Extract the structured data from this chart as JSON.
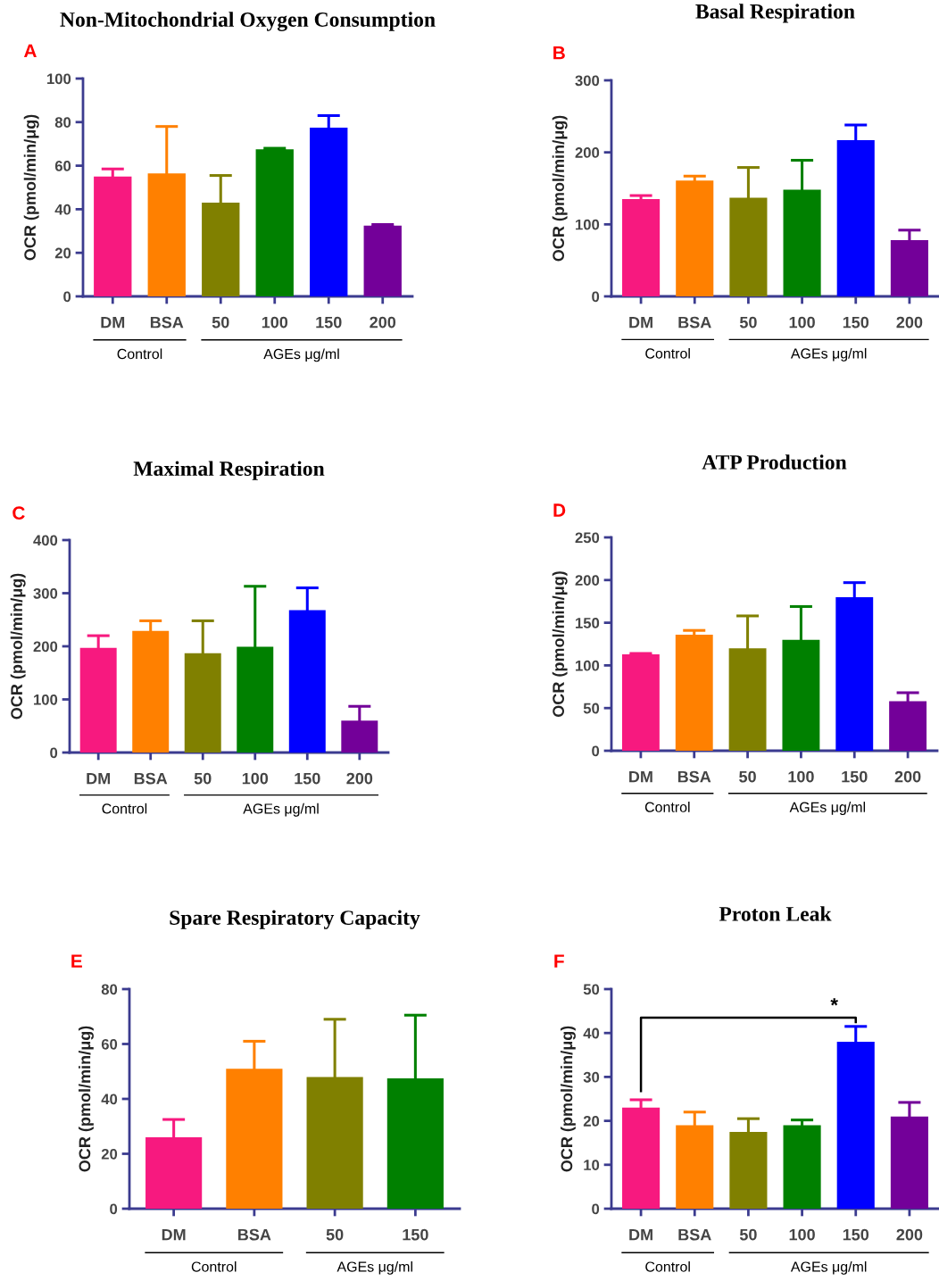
{
  "chart_data": [
    {
      "type": "bar",
      "title": "Non-Mitochondrial Oxygen Consumption",
      "ylabel": "OCR (pmol/min/μg)",
      "categories": [
        "DM",
        "BSA",
        "50",
        "100",
        "150",
        "200"
      ],
      "values": [
        55,
        56.5,
        43,
        67.5,
        77.5,
        32.5
      ],
      "errors": [
        3.5,
        21.5,
        12.5,
        0.5,
        5.5,
        0.5
      ],
      "colors": [
        "#f7197f",
        "#ff8000",
        "#808000",
        "#008000",
        "#0000ff",
        "#730099"
      ],
      "ylim": [
        0,
        100
      ],
      "yticks": [
        0,
        20,
        40,
        60,
        80,
        100
      ],
      "annotations": [
        "A",
        "Control",
        "AGEs μg/ml"
      ]
    },
    {
      "type": "bar",
      "title": "Basal Respiration",
      "ylabel": "OCR (pmol/min/μg)",
      "categories": [
        "DM",
        "BSA",
        "50",
        "100",
        "150",
        "200"
      ],
      "values": [
        135,
        161,
        137,
        148,
        217,
        78
      ],
      "errors": [
        5,
        6,
        42,
        41,
        21,
        14
      ],
      "colors": [
        "#f7197f",
        "#ff8000",
        "#808000",
        "#008000",
        "#0000ff",
        "#730099"
      ],
      "ylim": [
        0,
        300
      ],
      "yticks": [
        0,
        100,
        200,
        300
      ],
      "annotations": [
        "B",
        "Control",
        "AGEs μg/ml"
      ]
    },
    {
      "type": "bar",
      "title": "Maximal Respiration",
      "ylabel": "OCR (pmol/min/μg)",
      "categories": [
        "DM",
        "BSA",
        "50",
        "100",
        "150",
        "200"
      ],
      "values": [
        197,
        229,
        187,
        199,
        268,
        60
      ],
      "errors": [
        23,
        19,
        61,
        114,
        42,
        27
      ],
      "colors": [
        "#f7197f",
        "#ff8000",
        "#808000",
        "#008000",
        "#0000ff",
        "#730099"
      ],
      "ylim": [
        0,
        400
      ],
      "yticks": [
        0,
        100,
        200,
        300,
        400
      ],
      "annotations": [
        "C",
        "Control",
        "AGEs μg/ml"
      ]
    },
    {
      "type": "bar",
      "title": "ATP Production",
      "ylabel": "OCR (pmol/min/μg)",
      "categories": [
        "DM",
        "BSA",
        "50",
        "100",
        "150",
        "200"
      ],
      "values": [
        113,
        136,
        120,
        130,
        180,
        58
      ],
      "errors": [
        1,
        5,
        38,
        39,
        17,
        10
      ],
      "colors": [
        "#f7197f",
        "#ff8000",
        "#808000",
        "#008000",
        "#0000ff",
        "#730099"
      ],
      "ylim": [
        0,
        250
      ],
      "yticks": [
        0,
        50,
        100,
        150,
        200,
        250
      ],
      "annotations": [
        "D",
        "Control",
        "AGEs μg/ml"
      ]
    },
    {
      "type": "bar",
      "title": "Spare Respiratory Capacity",
      "ylabel": "OCR (pmol/min/μg)",
      "categories": [
        "DM",
        "BSA",
        "50",
        "150"
      ],
      "values": [
        26,
        51,
        48,
        47.5
      ],
      "errors": [
        6.5,
        10,
        21,
        23
      ],
      "colors": [
        "#f7197f",
        "#ff8000",
        "#808000",
        "#008000"
      ],
      "ylim": [
        0,
        80
      ],
      "yticks": [
        0,
        20,
        40,
        60,
        80
      ],
      "annotations": [
        "E",
        "Control",
        "AGEs μg/ml"
      ]
    },
    {
      "type": "bar",
      "title": "Proton Leak",
      "ylabel": "OCR (pmol/min/μg)",
      "categories": [
        "DM",
        "BSA",
        "50",
        "100",
        "150",
        "200"
      ],
      "values": [
        23,
        19,
        17.5,
        19,
        38,
        21
      ],
      "errors": [
        1.8,
        3,
        3,
        1.2,
        3.5,
        3.2
      ],
      "colors": [
        "#f7197f",
        "#ff8000",
        "#808000",
        "#008000",
        "#0000ff",
        "#730099"
      ],
      "ylim": [
        0,
        50
      ],
      "yticks": [
        0,
        10,
        20,
        30,
        40,
        50
      ],
      "annotations": [
        "F",
        "Control",
        "AGEs μg/ml",
        "*"
      ]
    }
  ]
}
